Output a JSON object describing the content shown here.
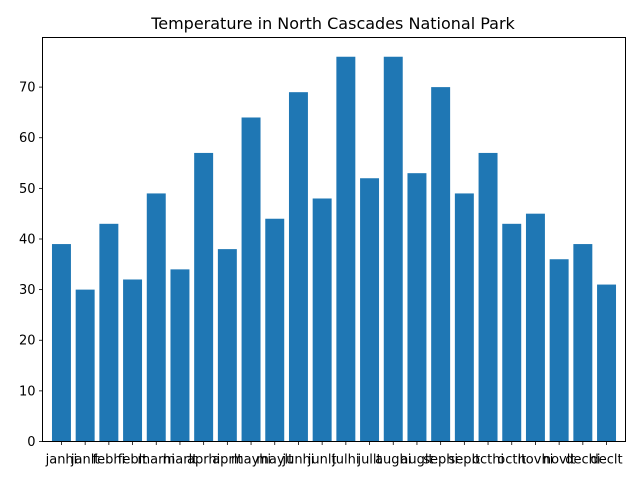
{
  "chart_data": {
    "type": "bar",
    "title": "Temperature in North Cascades National Park",
    "xlabel": "",
    "ylabel": "",
    "categories": [
      "janhi",
      "janlt",
      "febhi",
      "feblt",
      "marhi",
      "marlt",
      "aprhi",
      "aprlt",
      "mayhi",
      "maylt",
      "junhi",
      "junlt",
      "julhi",
      "jullt",
      "aughi",
      "auglt",
      "sephi",
      "seplt",
      "octhi",
      "octlt",
      "novhi",
      "novlt",
      "dechi",
      "declt"
    ],
    "values": [
      39,
      30,
      43,
      32,
      49,
      34,
      57,
      38,
      64,
      44,
      69,
      48,
      76,
      52,
      76,
      53,
      70,
      49,
      57,
      43,
      45,
      36,
      39,
      31
    ],
    "ylim": [
      0,
      79.8
    ],
    "yticks": [
      0,
      10,
      20,
      30,
      40,
      50,
      60,
      70
    ],
    "grid": false,
    "colors": {
      "bar": "#1f77b4",
      "axis": "#000000",
      "background": "#ffffff"
    }
  }
}
